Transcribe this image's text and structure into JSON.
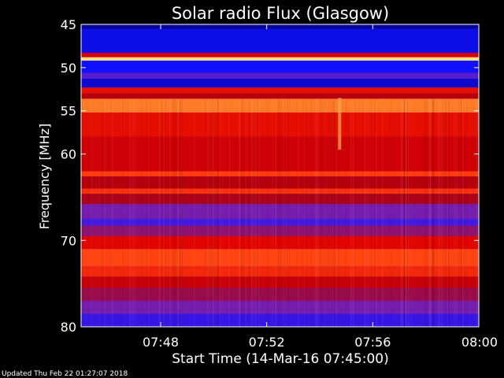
{
  "chart_data": {
    "type": "heatmap",
    "title": "Solar radio Flux (Glasgow)",
    "ylabel": "Frequency [MHz]",
    "xlabel": "Start Time (14-Mar-16 07:45:00)",
    "ylim": [
      45,
      80
    ],
    "xlim": [
      "07:45",
      "08:00"
    ],
    "y_ticks": [
      45,
      50,
      55,
      60,
      70,
      80
    ],
    "x_ticks": [
      "07:48",
      "07:52",
      "07:56",
      "08:00"
    ],
    "colormap": [
      "#000060",
      "#1010ff",
      "#7020c0",
      "#b00010",
      "#e00000",
      "#ff4010",
      "#ff9030",
      "#ffe080"
    ],
    "bands": [
      {
        "from": 45.0,
        "to": 45.5,
        "level": 0.05
      },
      {
        "from": 45.5,
        "to": 48.3,
        "level": 0.12
      },
      {
        "from": 48.3,
        "to": 48.8,
        "level": 0.55
      },
      {
        "from": 48.8,
        "to": 49.2,
        "level": 1.0
      },
      {
        "from": 49.2,
        "to": 50.6,
        "level": 0.14
      },
      {
        "from": 50.6,
        "to": 51.3,
        "level": 0.25
      },
      {
        "from": 51.3,
        "to": 52.3,
        "level": 0.1
      },
      {
        "from": 52.3,
        "to": 53.0,
        "level": 0.6
      },
      {
        "from": 53.0,
        "to": 53.6,
        "level": 0.45
      },
      {
        "from": 53.6,
        "to": 55.2,
        "level": 0.82
      },
      {
        "from": 55.2,
        "to": 58.0,
        "level": 0.6
      },
      {
        "from": 58.0,
        "to": 62.0,
        "level": 0.52
      },
      {
        "from": 62.0,
        "to": 62.6,
        "level": 0.7
      },
      {
        "from": 62.6,
        "to": 64.0,
        "level": 0.45
      },
      {
        "from": 64.0,
        "to": 64.6,
        "level": 0.68
      },
      {
        "from": 64.6,
        "to": 65.8,
        "level": 0.42
      },
      {
        "from": 65.8,
        "to": 67.5,
        "level": 0.3
      },
      {
        "from": 67.5,
        "to": 68.3,
        "level": 0.22
      },
      {
        "from": 68.3,
        "to": 69.5,
        "level": 0.35
      },
      {
        "from": 69.5,
        "to": 71.0,
        "level": 0.58
      },
      {
        "from": 71.0,
        "to": 73.0,
        "level": 0.72
      },
      {
        "from": 73.0,
        "to": 74.2,
        "level": 0.66
      },
      {
        "from": 74.2,
        "to": 75.5,
        "level": 0.5
      },
      {
        "from": 75.5,
        "to": 77.0,
        "level": 0.38
      },
      {
        "from": 77.0,
        "to": 78.5,
        "level": 0.3
      },
      {
        "from": 78.5,
        "to": 80.0,
        "level": 0.2
      }
    ],
    "events": [
      {
        "time": "07:54:45",
        "from": 53.5,
        "to": 59.5,
        "level": 0.9
      }
    ]
  },
  "footer": "Updated Thu Feb 22 01:27:07 2018"
}
